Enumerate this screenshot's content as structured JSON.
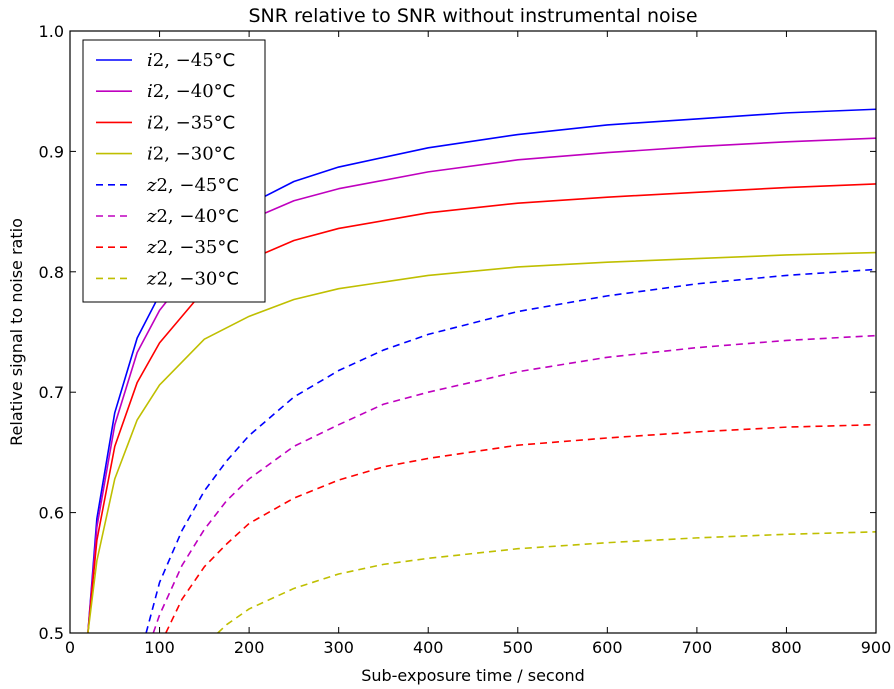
{
  "chart_data": {
    "type": "line",
    "title": "SNR relative to SNR without instrumental noise",
    "xlabel": "Sub-exposure time / second",
    "ylabel": "Relative signal to noise ratio",
    "xlim": [
      0,
      900
    ],
    "ylim": [
      0.5,
      1.0
    ],
    "xticks": [
      0,
      100,
      200,
      300,
      400,
      500,
      600,
      700,
      800,
      900
    ],
    "yticks": [
      0.5,
      0.6,
      0.7,
      0.8,
      0.9,
      1.0
    ],
    "xtick_labels": [
      "0",
      "100",
      "200",
      "300",
      "400",
      "500",
      "600",
      "700",
      "800",
      "900"
    ],
    "ytick_labels": [
      "0.5",
      "0.6",
      "0.7",
      "0.8",
      "0.9",
      "1.0"
    ],
    "grid": false,
    "legend_position": "top-left",
    "x": [
      20,
      30,
      50,
      75,
      100,
      150,
      200,
      250,
      300,
      400,
      500,
      600,
      700,
      800,
      900
    ],
    "series": [
      {
        "name": "i2, −45° C",
        "band": "i2",
        "temp": "−45° C",
        "color": "#0000ff",
        "style": "solid",
        "values": [
          0.5,
          0.595,
          0.683,
          0.745,
          0.781,
          0.831,
          0.856,
          0.875,
          0.887,
          0.903,
          0.914,
          0.922,
          0.927,
          0.932,
          0.935
        ]
      },
      {
        "name": "i2, −40° C",
        "band": "i2",
        "temp": "−40° C",
        "color": "#bf00bf",
        "style": "solid",
        "values": [
          0.5,
          0.588,
          0.673,
          0.733,
          0.768,
          0.815,
          0.843,
          0.859,
          0.869,
          0.883,
          0.893,
          0.899,
          0.904,
          0.908,
          0.911
        ]
      },
      {
        "name": "i2, −35° C",
        "band": "i2",
        "temp": "−35° C",
        "color": "#ff0000",
        "style": "solid",
        "values": [
          0.5,
          0.577,
          0.655,
          0.708,
          0.741,
          0.785,
          0.81,
          0.826,
          0.836,
          0.849,
          0.857,
          0.862,
          0.866,
          0.87,
          0.873
        ]
      },
      {
        "name": "i2, −30° C",
        "band": "i2",
        "temp": "−30° C",
        "color": "#bfbf00",
        "style": "solid",
        "values": [
          0.5,
          0.56,
          0.628,
          0.677,
          0.706,
          0.744,
          0.763,
          0.777,
          0.786,
          0.797,
          0.804,
          0.808,
          0.811,
          0.814,
          0.816
        ]
      },
      {
        "name": "z2, −45° C",
        "band": "z2",
        "temp": "−45° C",
        "color": "#0000ff",
        "style": "dashed",
        "x": [
          85,
          100,
          125,
          150,
          175,
          200,
          250,
          300,
          350,
          400,
          500,
          600,
          700,
          800,
          900
        ],
        "values": [
          0.5,
          0.542,
          0.585,
          0.618,
          0.643,
          0.664,
          0.696,
          0.718,
          0.735,
          0.748,
          0.767,
          0.78,
          0.79,
          0.797,
          0.802
        ]
      },
      {
        "name": "z2, −40° C",
        "band": "z2",
        "temp": "−40° C",
        "color": "#bf00bf",
        "style": "dashed",
        "x": [
          93,
          100,
          125,
          150,
          175,
          200,
          250,
          300,
          350,
          400,
          500,
          600,
          700,
          800,
          900
        ],
        "values": [
          0.5,
          0.515,
          0.556,
          0.586,
          0.61,
          0.628,
          0.655,
          0.673,
          0.69,
          0.7,
          0.717,
          0.729,
          0.737,
          0.743,
          0.747
        ]
      },
      {
        "name": "z2, −35° C",
        "band": "z2",
        "temp": "−35° C",
        "color": "#ff0000",
        "style": "dashed",
        "x": [
          107,
          125,
          150,
          175,
          200,
          250,
          300,
          350,
          400,
          500,
          600,
          700,
          800,
          900
        ],
        "values": [
          0.5,
          0.528,
          0.555,
          0.574,
          0.591,
          0.612,
          0.627,
          0.638,
          0.645,
          0.656,
          0.662,
          0.667,
          0.671,
          0.673
        ]
      },
      {
        "name": "z2, −30° C",
        "band": "z2",
        "temp": "−30° C",
        "color": "#bfbf00",
        "style": "dashed",
        "x": [
          165,
          175,
          200,
          250,
          300,
          350,
          400,
          500,
          600,
          700,
          800,
          900
        ],
        "values": [
          0.5,
          0.507,
          0.52,
          0.537,
          0.549,
          0.557,
          0.562,
          0.57,
          0.575,
          0.579,
          0.582,
          0.584
        ]
      }
    ]
  }
}
